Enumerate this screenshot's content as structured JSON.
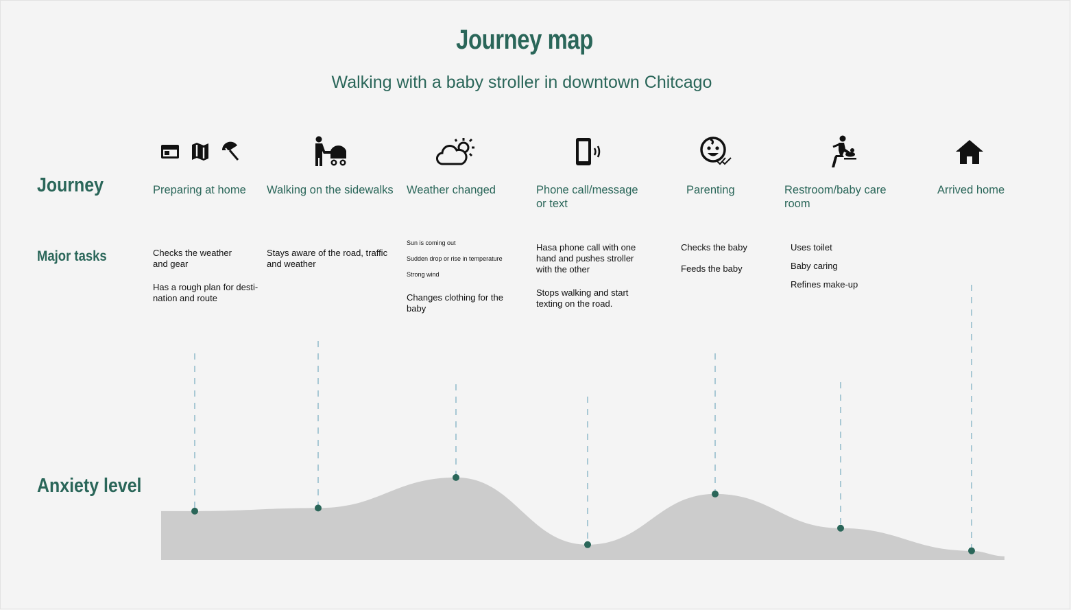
{
  "title": "Journey map",
  "subtitle": "Walking with a baby stroller in downtown Chitcago",
  "row_labels": {
    "journey": "Journey",
    "tasks": "Major tasks",
    "anxiety": "Anxiety level"
  },
  "stages": [
    {
      "name": "Preparing at home",
      "icons": [
        "browser-window-icon",
        "map-icon",
        "beach-umbrella-icon"
      ],
      "tasks": [
        "Checks the weather and gear",
        "Has a rough plan for desti-nation and route"
      ]
    },
    {
      "name": "Walking on the sidewalks",
      "icons": [
        "person-with-stroller-icon"
      ],
      "tasks": [
        "Stays aware of the road, traffic and weather"
      ]
    },
    {
      "name": "Weather changed",
      "icons": [
        "partly-sunny-cloud-icon"
      ],
      "tasks": [
        "Sun is coming out",
        "Sudden drop or rise in temperature",
        "Strong wind",
        "Changes clothing for the baby"
      ]
    },
    {
      "name": "Phone call/message or text",
      "icons": [
        "vibrating-phone-icon"
      ],
      "tasks": [
        "Hasa phone call with one hand and pushes stroller with the other",
        "Stops walking and start texting on the road."
      ]
    },
    {
      "name": "Parenting",
      "icons": [
        "smiling-baby-icon"
      ],
      "tasks": [
        "Checks the baby",
        "Feeds the baby"
      ]
    },
    {
      "name": "Restroom/baby care room",
      "icons": [
        "baby-changing-icon"
      ],
      "tasks": [
        "Uses toilet",
        "Baby caring",
        "Refines make-up"
      ]
    },
    {
      "name": "Arrived home",
      "icons": [
        "home-icon"
      ],
      "tasks": []
    }
  ],
  "colors": {
    "accent": "#2a6659",
    "area": "#cccccc",
    "dashed": "#7fb0c4",
    "point": "#2a6659"
  },
  "chart_data": {
    "type": "area",
    "x": [
      "Preparing at home",
      "Walking on the sidewalks",
      "Weather changed",
      "Phone call/message or text",
      "Parenting",
      "Restroom/baby care room",
      "Arrived home"
    ],
    "series": [
      {
        "values": [
          0.35,
          0.4,
          0.9,
          -0.2,
          0.63,
          0.07,
          -0.3
        ]
      }
    ]
  }
}
